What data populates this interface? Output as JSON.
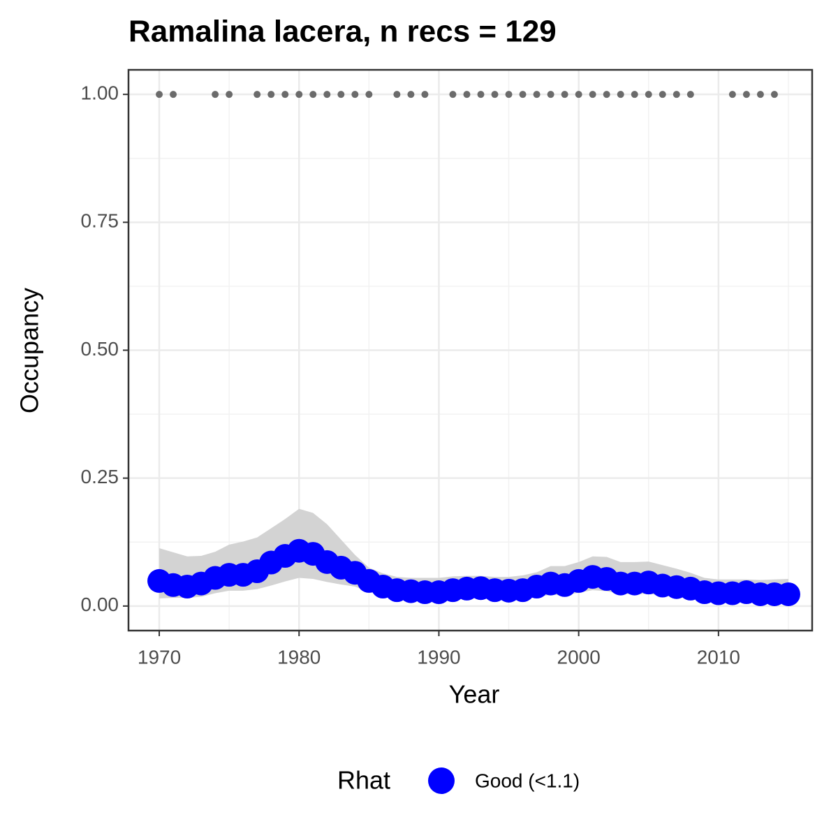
{
  "chart_data": {
    "type": "line",
    "title": "Ramalina lacera, n recs = 129",
    "x_label": "Year",
    "y_label": "Occupancy",
    "legend_title": "Rhat",
    "legend_position": "bottom",
    "x": [
      1970,
      1971,
      1972,
      1973,
      1974,
      1975,
      1976,
      1977,
      1978,
      1979,
      1980,
      1981,
      1982,
      1983,
      1984,
      1985,
      1986,
      1987,
      1988,
      1989,
      1990,
      1991,
      1992,
      1993,
      1994,
      1995,
      1996,
      1997,
      1998,
      1999,
      2000,
      2001,
      2002,
      2003,
      2004,
      2005,
      2006,
      2007,
      2008,
      2009,
      2010,
      2011,
      2012,
      2013,
      2014,
      2015
    ],
    "series": [
      {
        "name": "Good (<1.1)",
        "color": "#0000ff",
        "band_color": "#d3d3d3",
        "values": [
          0.049,
          0.041,
          0.038,
          0.044,
          0.055,
          0.061,
          0.061,
          0.068,
          0.085,
          0.098,
          0.108,
          0.102,
          0.086,
          0.075,
          0.065,
          0.049,
          0.038,
          0.031,
          0.029,
          0.027,
          0.027,
          0.031,
          0.034,
          0.035,
          0.031,
          0.03,
          0.031,
          0.038,
          0.044,
          0.041,
          0.049,
          0.057,
          0.053,
          0.044,
          0.044,
          0.046,
          0.04,
          0.037,
          0.034,
          0.027,
          0.025,
          0.025,
          0.027,
          0.023,
          0.023,
          0.023
        ],
        "upper": [
          0.113,
          0.105,
          0.097,
          0.098,
          0.106,
          0.12,
          0.126,
          0.134,
          0.152,
          0.17,
          0.19,
          0.182,
          0.16,
          0.13,
          0.1,
          0.075,
          0.064,
          0.057,
          0.055,
          0.055,
          0.055,
          0.058,
          0.059,
          0.059,
          0.057,
          0.057,
          0.06,
          0.066,
          0.078,
          0.078,
          0.086,
          0.097,
          0.096,
          0.086,
          0.086,
          0.087,
          0.08,
          0.073,
          0.065,
          0.055,
          0.052,
          0.052,
          0.052,
          0.051,
          0.052,
          0.053
        ],
        "lower": [
          0.015,
          0.016,
          0.016,
          0.018,
          0.025,
          0.03,
          0.03,
          0.033,
          0.04,
          0.048,
          0.055,
          0.053,
          0.047,
          0.042,
          0.038,
          0.028,
          0.02,
          0.015,
          0.013,
          0.012,
          0.012,
          0.014,
          0.016,
          0.017,
          0.015,
          0.014,
          0.014,
          0.018,
          0.022,
          0.021,
          0.026,
          0.031,
          0.029,
          0.024,
          0.023,
          0.024,
          0.02,
          0.018,
          0.016,
          0.012,
          0.01,
          0.01,
          0.011,
          0.009,
          0.009,
          0.009
        ]
      }
    ],
    "records": {
      "color": "#6b6b6b",
      "x": [
        1970,
        1971,
        1974,
        1975,
        1977,
        1978,
        1979,
        1980,
        1981,
        1982,
        1983,
        1984,
        1985,
        1987,
        1988,
        1989,
        1991,
        1992,
        1993,
        1994,
        1995,
        1996,
        1997,
        1998,
        1999,
        2000,
        2001,
        2002,
        2003,
        2004,
        2005,
        2006,
        2007,
        2008,
        2011,
        2012,
        2013,
        2014
      ],
      "values": [
        1,
        1,
        1,
        1,
        1,
        1,
        1,
        1,
        1,
        1,
        1,
        1,
        1,
        1,
        1,
        1,
        1,
        1,
        1,
        1,
        1,
        1,
        1,
        1,
        1,
        1,
        1,
        1,
        1,
        1,
        1,
        1,
        1,
        1,
        1,
        1,
        1,
        1
      ]
    },
    "xlim": [
      1967.8,
      2016.7
    ],
    "ylim": [
      -0.048,
      1.048
    ],
    "xticks": [
      1970,
      1980,
      1990,
      2000,
      2010
    ],
    "yticks": [
      {
        "value": 0,
        "label": "0.00"
      },
      {
        "value": 0.25,
        "label": "0.25"
      },
      {
        "value": 0.5,
        "label": "0.50"
      },
      {
        "value": 0.75,
        "label": "0.75"
      },
      {
        "value": 1,
        "label": "1.00"
      }
    ],
    "grid": true,
    "minor_grid": true
  }
}
